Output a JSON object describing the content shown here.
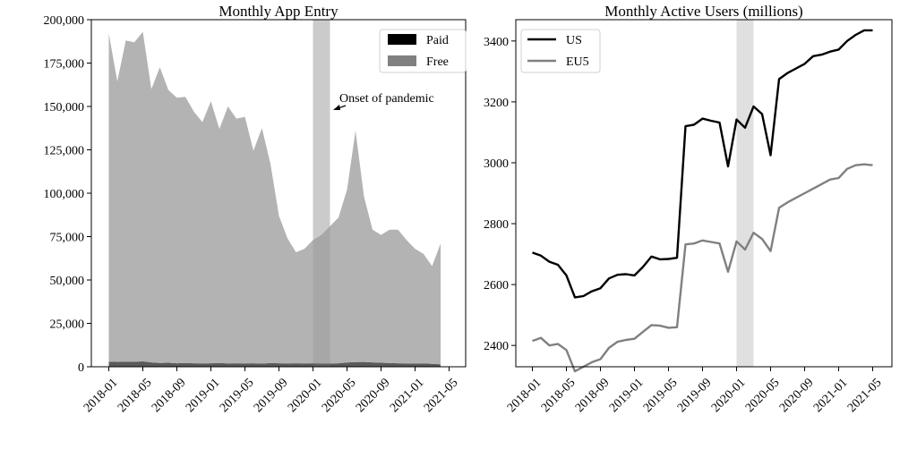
{
  "chart_data": [
    {
      "type": "area",
      "title": "Monthly App Entry",
      "xlabel": "",
      "ylabel": "",
      "stacked": true,
      "ylim": [
        0,
        200000
      ],
      "yticks": [
        0,
        25000,
        50000,
        75000,
        100000,
        125000,
        150000,
        175000,
        200000
      ],
      "ytick_labels": [
        "0",
        "25,000",
        "50,000",
        "75,000",
        "100,000",
        "125,000",
        "150,000",
        "175,000",
        "200,000"
      ],
      "xticks": [
        "2018-01",
        "2018-05",
        "2018-09",
        "2019-01",
        "2019-05",
        "2019-09",
        "2020-01",
        "2020-05",
        "2020-09",
        "2021-01",
        "2021-05"
      ],
      "legend_position": "top-right",
      "legend": [
        {
          "label": "Paid",
          "color": "#000000"
        },
        {
          "label": "Free",
          "color": "#808080"
        }
      ],
      "shaded_period": {
        "start": "2020-01",
        "end": "2020-03",
        "color": "#e0e0e0"
      },
      "annotation": {
        "text": "Onset of pandemic",
        "target_x": "2020-03",
        "target_y": 150000
      },
      "x": [
        "2018-01",
        "2018-02",
        "2018-03",
        "2018-04",
        "2018-05",
        "2018-06",
        "2018-07",
        "2018-08",
        "2018-09",
        "2018-10",
        "2018-11",
        "2018-12",
        "2019-01",
        "2019-02",
        "2019-03",
        "2019-04",
        "2019-05",
        "2019-06",
        "2019-07",
        "2019-08",
        "2019-09",
        "2019-10",
        "2019-11",
        "2019-12",
        "2020-01",
        "2020-02",
        "2020-03",
        "2020-04",
        "2020-05",
        "2020-06",
        "2020-07",
        "2020-08",
        "2020-09",
        "2020-10",
        "2020-11",
        "2020-12",
        "2021-01",
        "2021-02",
        "2021-03",
        "2021-04"
      ],
      "series": [
        {
          "name": "Paid",
          "color": "#5a5a5a",
          "values": [
            3000,
            2800,
            3000,
            2900,
            3100,
            2500,
            2200,
            2300,
            2000,
            2200,
            2000,
            1900,
            2000,
            2100,
            1900,
            2000,
            1900,
            2000,
            1800,
            2100,
            2000,
            1900,
            2000,
            1900,
            2000,
            1900,
            1800,
            2000,
            2400,
            2700,
            2800,
            2500,
            2300,
            2100,
            2000,
            1900,
            1800,
            1900,
            1700,
            1400
          ]
        },
        {
          "name": "Free",
          "color": "#b3b3b3",
          "values": [
            189000,
            161700,
            185000,
            184100,
            189900,
            157500,
            170300,
            157200,
            153000,
            153300,
            145000,
            139100,
            151000,
            134900,
            148100,
            141000,
            142100,
            122500,
            135700,
            114900,
            85000,
            72100,
            64000,
            66100,
            71000,
            74100,
            79200,
            84000,
            99600,
            133300,
            95200,
            76500,
            73700,
            76900,
            77000,
            71100,
            66200,
            63100,
            56300,
            69600
          ]
        }
      ]
    },
    {
      "type": "line",
      "title": "Monthly Active Users (millions)",
      "xlabel": "",
      "ylabel": "",
      "ylim": [
        2330,
        3470
      ],
      "yticks": [
        2400,
        2600,
        2800,
        3000,
        3200,
        3400
      ],
      "ytick_labels": [
        "2400",
        "2600",
        "2800",
        "3000",
        "3200",
        "3400"
      ],
      "xticks": [
        "2018-01",
        "2018-05",
        "2018-09",
        "2019-01",
        "2019-05",
        "2019-09",
        "2020-01",
        "2020-05",
        "2020-09",
        "2021-01",
        "2021-05"
      ],
      "legend_position": "top-left",
      "shaded_period": {
        "start": "2020-01",
        "end": "2020-03",
        "color": "#e0e0e0"
      },
      "x": [
        "2018-01",
        "2018-02",
        "2018-03",
        "2018-04",
        "2018-05",
        "2018-06",
        "2018-07",
        "2018-08",
        "2018-09",
        "2018-10",
        "2018-11",
        "2018-12",
        "2019-01",
        "2019-02",
        "2019-03",
        "2019-04",
        "2019-05",
        "2019-06",
        "2019-07",
        "2019-08",
        "2019-09",
        "2019-10",
        "2019-11",
        "2019-12",
        "2020-01",
        "2020-02",
        "2020-03",
        "2020-04",
        "2020-05",
        "2020-06",
        "2020-07",
        "2020-08",
        "2020-09",
        "2020-10",
        "2020-11",
        "2020-12",
        "2021-01",
        "2021-02",
        "2021-03",
        "2021-04",
        "2021-05"
      ],
      "series": [
        {
          "name": "US",
          "color": "#000000",
          "values": [
            2705,
            2695,
            2675,
            2665,
            2630,
            2558,
            2562,
            2578,
            2588,
            2620,
            2632,
            2634,
            2630,
            2658,
            2692,
            2683,
            2684,
            2688,
            3120,
            3125,
            3145,
            3138,
            3132,
            2988,
            3142,
            3115,
            3185,
            3160,
            3025,
            3275,
            3295,
            3310,
            3325,
            3350,
            3355,
            3365,
            3372,
            3400,
            3420,
            3435,
            3435
          ]
        },
        {
          "name": "EU5",
          "color": "#808080",
          "values": [
            2415,
            2425,
            2400,
            2405,
            2385,
            2315,
            2330,
            2345,
            2355,
            2392,
            2412,
            2418,
            2422,
            2445,
            2467,
            2465,
            2458,
            2460,
            2732,
            2735,
            2745,
            2740,
            2735,
            2642,
            2742,
            2715,
            2770,
            2750,
            2710,
            2852,
            2870,
            2885,
            2900,
            2915,
            2930,
            2945,
            2950,
            2980,
            2992,
            2995,
            2992
          ]
        }
      ]
    }
  ]
}
